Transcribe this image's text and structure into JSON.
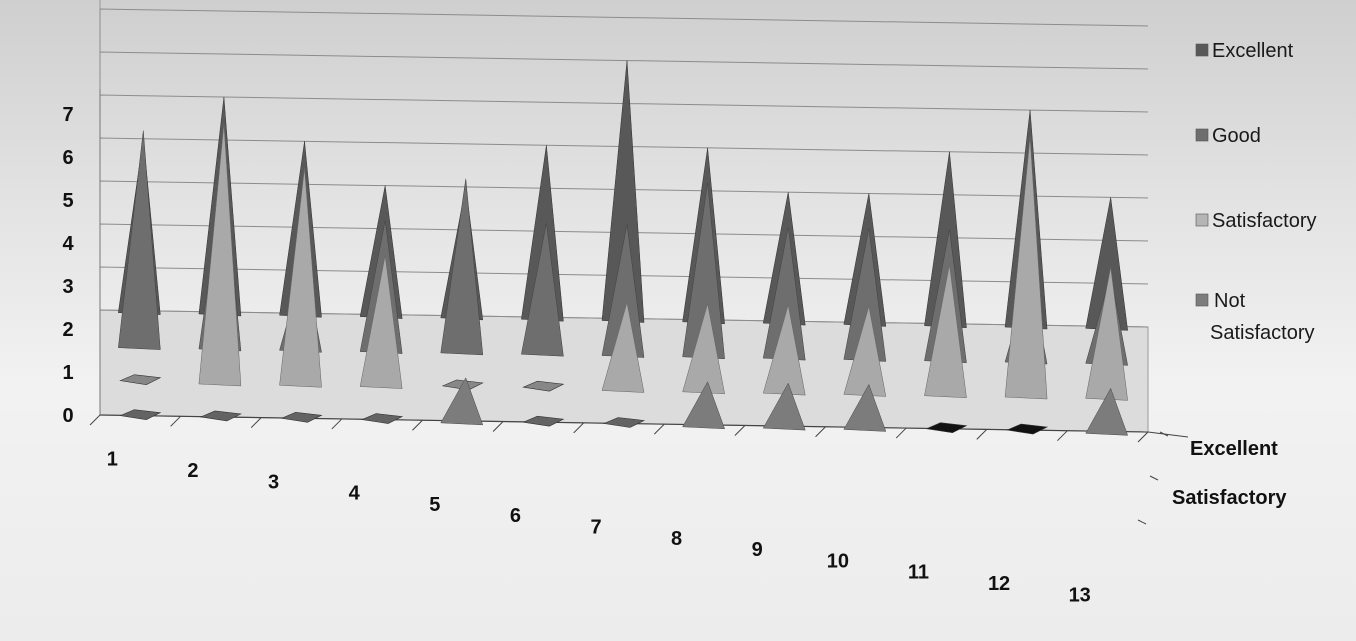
{
  "colors": {
    "excellent": "#585858",
    "good": "#6e6e6e",
    "satisfactory": "#a9a9a9",
    "not_satisfactory": "#7c7c7c",
    "zero_marker": "#1e1e1e"
  },
  "chart_data": {
    "type": "bar",
    "style": "3d-pyramid",
    "title": "",
    "categories": [
      "1",
      "2",
      "3",
      "4",
      "5",
      "6",
      "7",
      "8",
      "9",
      "10",
      "11",
      "12",
      "13"
    ],
    "ylim": [
      0,
      7
    ],
    "yticks": [
      "0",
      "1",
      "2",
      "3",
      "4",
      "5",
      "6",
      "7"
    ],
    "grid": true,
    "legend_position": "right",
    "depth_axis_labels": [
      "Excellent",
      "Satisfactory"
    ],
    "series": [
      {
        "name": "Excellent",
        "values": [
          4,
          5,
          4,
          3,
          3,
          4,
          6,
          4,
          3,
          3,
          4,
          5,
          3
        ]
      },
      {
        "name": "Good",
        "values": [
          5,
          4,
          2,
          3,
          4,
          3,
          3,
          4,
          3,
          3,
          3,
          2,
          2
        ]
      },
      {
        "name": "Satisfactory",
        "values": [
          0,
          6,
          5,
          3,
          0,
          0,
          2,
          2,
          2,
          2,
          3,
          6,
          3
        ]
      },
      {
        "name": "Not Satisfactory",
        "values": [
          0,
          0,
          0,
          0,
          1,
          0,
          0,
          1,
          1,
          1,
          0,
          0,
          1
        ]
      }
    ]
  },
  "legend": {
    "items": [
      {
        "label": "Excellent",
        "color": "#585858"
      },
      {
        "label": "Good",
        "color": "#6e6e6e"
      },
      {
        "label": "Satisfactory",
        "color": "#b5b5b5"
      },
      {
        "label": "Not Satisfactory",
        "color": "#7c7c7c"
      }
    ]
  }
}
